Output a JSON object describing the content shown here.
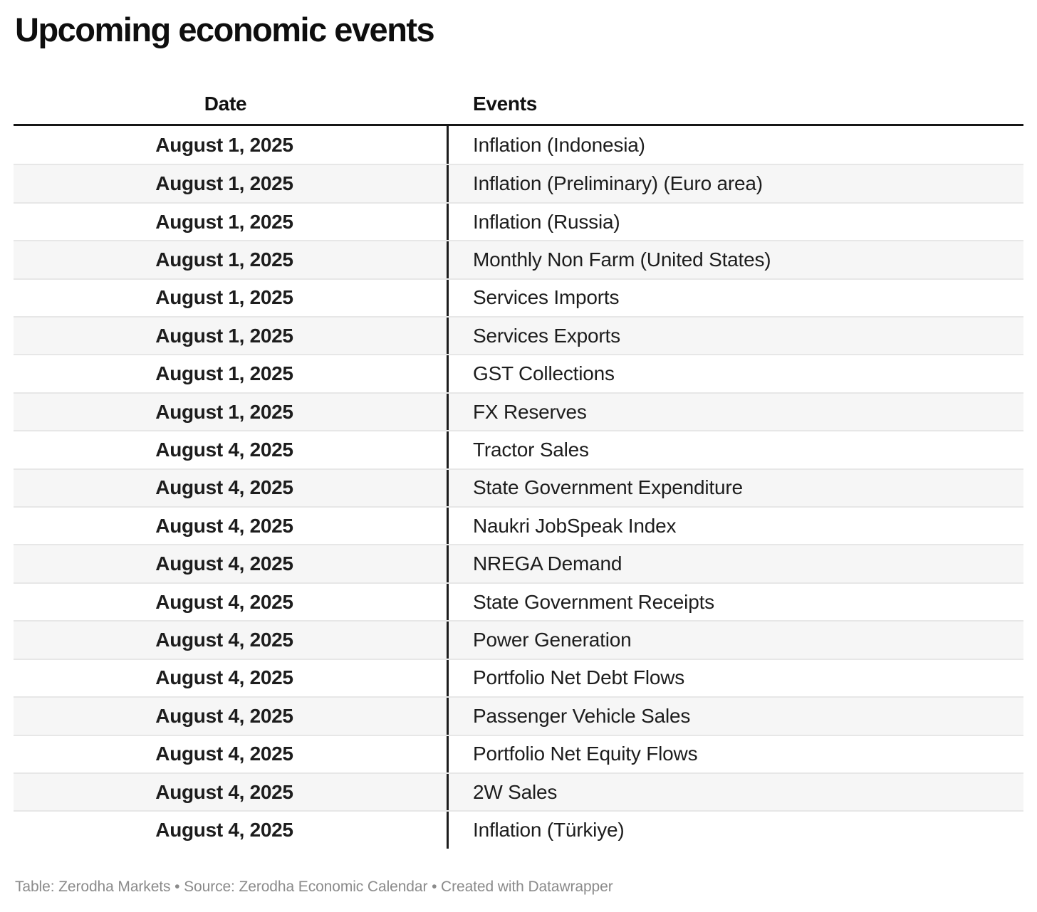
{
  "title": "Upcoming economic events",
  "chart_data": {
    "type": "table",
    "title": "Upcoming economic events",
    "columns": [
      "Date",
      "Events"
    ],
    "rows": [
      [
        "August 1, 2025",
        "Inflation (Indonesia)"
      ],
      [
        "August 1, 2025",
        "Inflation (Preliminary) (Euro area)"
      ],
      [
        "August 1, 2025",
        "Inflation (Russia)"
      ],
      [
        "August 1, 2025",
        "Monthly Non Farm (United States)"
      ],
      [
        "August 1, 2025",
        "Services Imports"
      ],
      [
        "August 1, 2025",
        "Services Exports"
      ],
      [
        "August 1, 2025",
        "GST Collections"
      ],
      [
        "August 1, 2025",
        "FX Reserves"
      ],
      [
        "August 4, 2025",
        "Tractor Sales"
      ],
      [
        "August 4, 2025",
        "State Government Expenditure"
      ],
      [
        "August 4, 2025",
        "Naukri JobSpeak Index"
      ],
      [
        "August 4, 2025",
        "NREGA Demand"
      ],
      [
        "August 4, 2025",
        "State Government Receipts"
      ],
      [
        "August 4, 2025",
        "Power Generation"
      ],
      [
        "August 4, 2025",
        "Portfolio Net Debt Flows"
      ],
      [
        "August 4, 2025",
        "Passenger Vehicle Sales"
      ],
      [
        "August 4, 2025",
        "Portfolio Net Equity Flows"
      ],
      [
        "August 4, 2025",
        "2W Sales"
      ],
      [
        "August 4, 2025",
        "Inflation (Türkiye)"
      ]
    ],
    "footer": "Table: Zerodha Markets • Source: Zerodha Economic Calendar • Created with Datawrapper",
    "layout": {
      "date_column_align": "center",
      "events_column_align": "left",
      "zebra_stripes": true,
      "legend": "none"
    }
  },
  "colors": {
    "stripe": "#f6f6f6",
    "header_rule": "#161616",
    "column_divider": "#1c1c1c",
    "row_separator": "#e7e7e7",
    "body_text": "#1d1d1d",
    "footer_text": "#8b8b8b"
  }
}
